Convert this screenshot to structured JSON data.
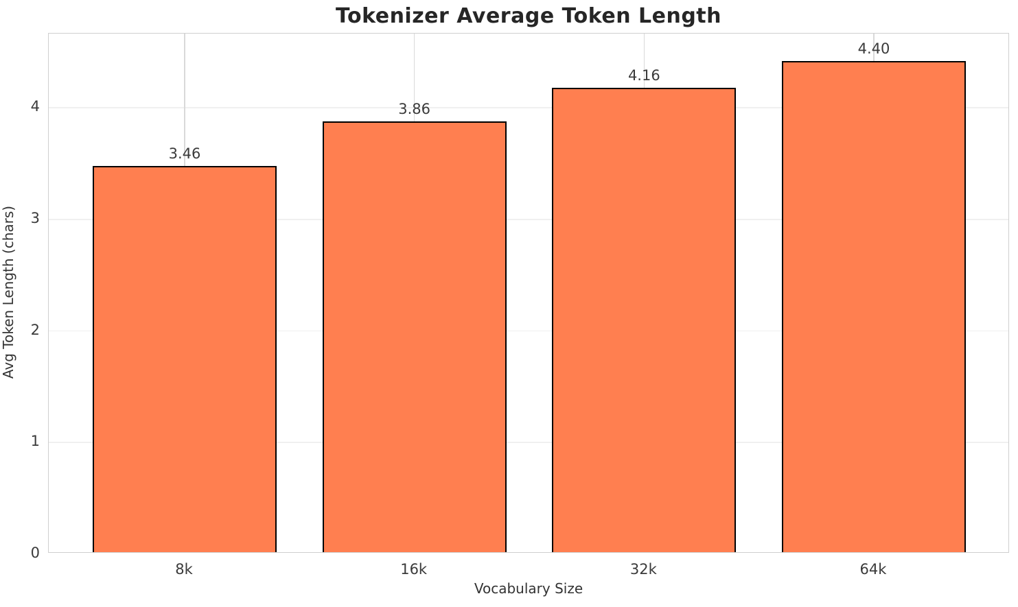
{
  "chart_data": {
    "type": "bar",
    "title": "Tokenizer Average Token Length",
    "xlabel": "Vocabulary Size",
    "ylabel": "Avg Token Length (chars)",
    "categories": [
      "8k",
      "16k",
      "32k",
      "64k"
    ],
    "values": [
      3.46,
      3.86,
      4.16,
      4.4
    ],
    "value_labels": [
      "3.46",
      "3.86",
      "4.16",
      "4.40"
    ],
    "yticks": [
      0,
      1,
      2,
      3,
      4
    ],
    "ylim": [
      0,
      4.66
    ],
    "grid": "on",
    "legend_position": "none",
    "colors": {
      "bar_fill": "#FF7F50",
      "bar_edge": "#000000",
      "title_text": "#262626",
      "tick_text": "#3a3a3a",
      "axis_label_text": "#333333",
      "spine": "#cfcfcf",
      "grid_horizontal": "#f0f0f0",
      "grid_vertical": "#d9d9d9"
    }
  }
}
